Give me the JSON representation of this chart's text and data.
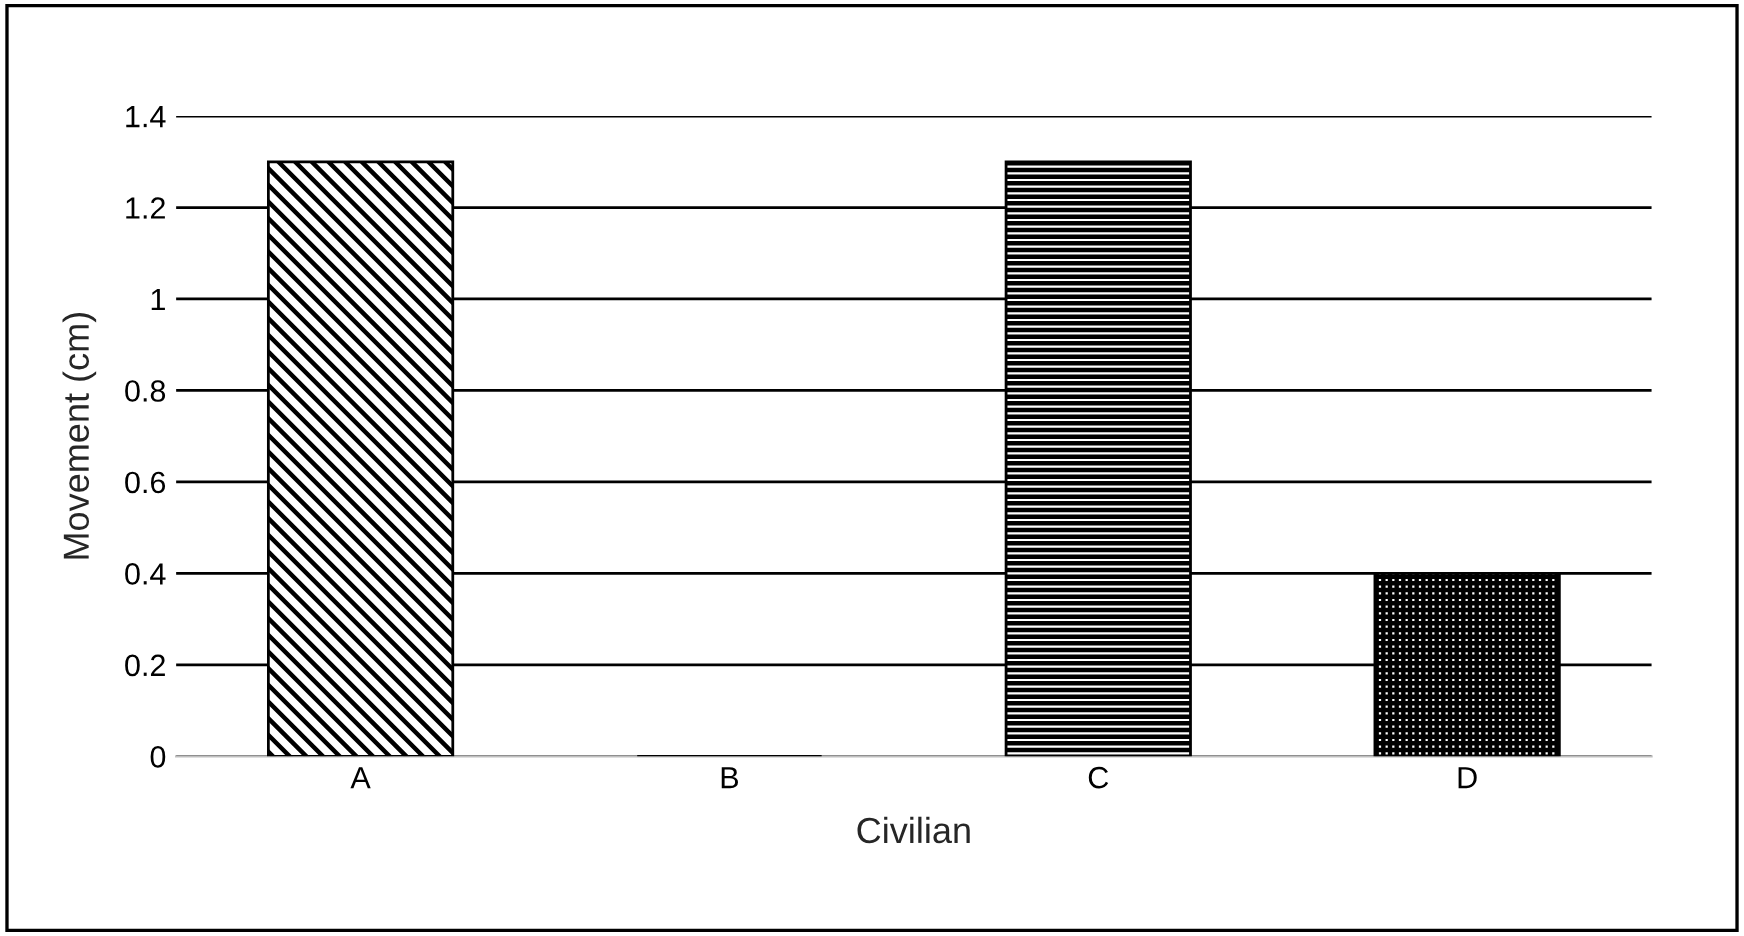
{
  "chart_data": {
    "type": "bar",
    "xlabel": "Civilian",
    "ylabel": "Movement (cm)",
    "categories": [
      "A",
      "B",
      "C",
      "D"
    ],
    "values": [
      1.3,
      0,
      1.3,
      0.4
    ],
    "color": "#000000",
    "ylim": [
      0,
      1.4
    ],
    "yticks": [
      0,
      0.2,
      0.4,
      0.6,
      0.8,
      1,
      1.2,
      1.4
    ],
    "grid": "y",
    "legend": false
  }
}
